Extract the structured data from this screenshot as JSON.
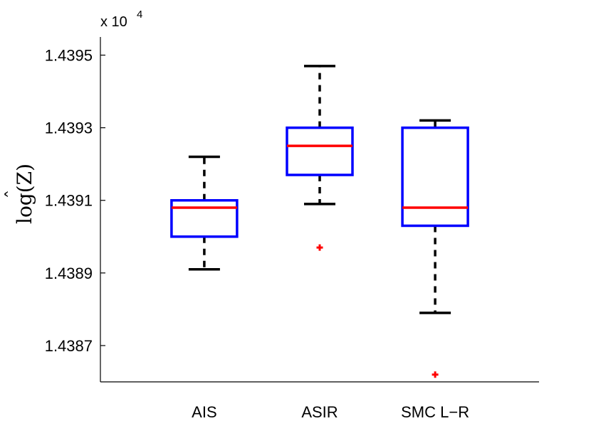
{
  "chart_data": {
    "type": "box",
    "categories": [
      "AIS",
      "ASIR",
      "SMC L−R"
    ],
    "ylabel": "log(Ẑ)",
    "ylabel_text": "log(Z)",
    "ylabel_hat": "̂",
    "y_multiplier": "x 10",
    "y_multiplier_exp": "4",
    "ylim": [
      1.4386,
      1.43955
    ],
    "yticks": [
      1.4387,
      1.4389,
      1.4391,
      1.4393,
      1.4395
    ],
    "ytick_labels": [
      "1.4387",
      "1.4389",
      "1.4391",
      "1.4393",
      "1.4395"
    ],
    "boxes": [
      {
        "name": "AIS",
        "whisker_low": 1.43891,
        "q1": 1.439,
        "median": 1.43908,
        "q3": 1.4391,
        "whisker_high": 1.43922,
        "outliers": []
      },
      {
        "name": "ASIR",
        "whisker_low": 1.43909,
        "q1": 1.43917,
        "median": 1.43925,
        "q3": 1.4393,
        "whisker_high": 1.43947,
        "outliers": [
          1.43897
        ]
      },
      {
        "name": "SMC L−R",
        "whisker_low": 1.43879,
        "q1": 1.43903,
        "median": 1.43908,
        "q3": 1.4393,
        "whisker_high": 1.43932,
        "outliers": [
          1.43862
        ]
      }
    ],
    "grid": false,
    "colors": {
      "box": "#0000ff",
      "median": "#ff0000",
      "whisker": "#000000",
      "outlier": "#ff0000"
    }
  }
}
